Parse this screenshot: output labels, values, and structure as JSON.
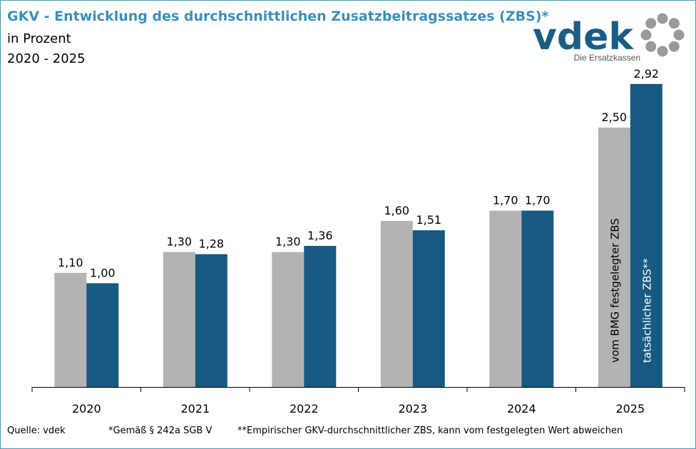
{
  "header": {
    "title": "GKV - Entwicklung des durchschnittlichen Zusatzbeitragssatzes (ZBS)*",
    "subtitle": "in Prozent",
    "period": "2020 - 2025"
  },
  "logo": {
    "wordmark": "vdek",
    "tagline": "Die Ersatzkassen",
    "wordmark_color": "#1a5e85",
    "dots_color": "#9a9a9a"
  },
  "colors": {
    "accent": "#3a8fb9",
    "series_gray": "#b3b3b3",
    "series_blue": "#175a82"
  },
  "chart_data": {
    "type": "bar",
    "categories": [
      "2020",
      "2021",
      "2022",
      "2023",
      "2024",
      "2025"
    ],
    "series": [
      {
        "name": "vom BMG festgelegter ZBS",
        "values": [
          1.1,
          1.3,
          1.3,
          1.6,
          1.7,
          2.5
        ],
        "labels": [
          "1,10",
          "1,30",
          "1,30",
          "1,60",
          "1,70",
          "2,50"
        ]
      },
      {
        "name": "tatsächlicher ZBS**",
        "values": [
          1.0,
          1.28,
          1.36,
          1.51,
          1.7,
          2.92
        ],
        "labels": [
          "1,00",
          "1,28",
          "1,36",
          "1,51",
          "1,70",
          "2,92"
        ]
      }
    ],
    "ylim": [
      0,
      3.0
    ],
    "grid": false,
    "legend": "none"
  },
  "footer": {
    "source": "Quelle: vdek",
    "note1": "*Gemäß § 242a SGB V",
    "note2": "**Empirischer GKV-durchschnittlicher ZBS, kann vom festgelegten Wert abweichen"
  }
}
